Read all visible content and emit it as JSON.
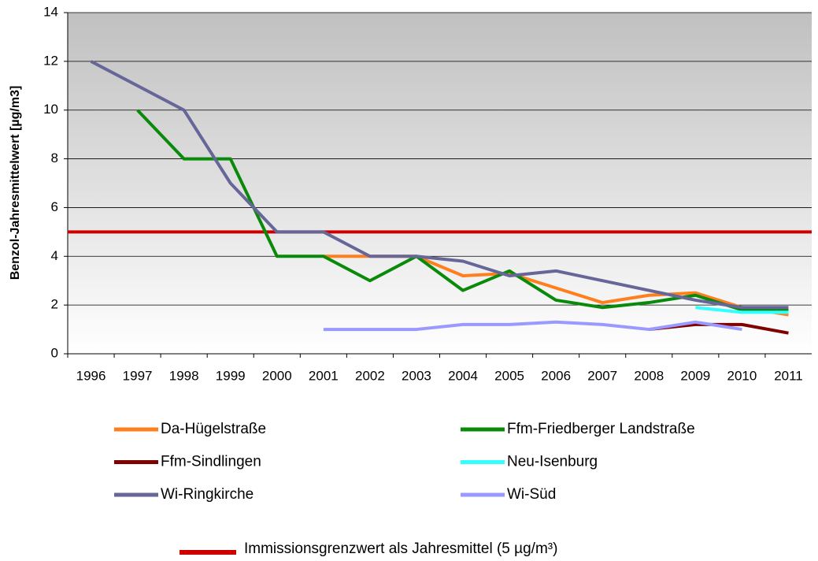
{
  "chart_data": {
    "type": "line",
    "y_label": "Benzol-Jahresmittelwert [µg/m3]",
    "categories": [
      "1996",
      "1997",
      "1998",
      "1999",
      "2000",
      "2001",
      "2002",
      "2003",
      "2004",
      "2005",
      "2006",
      "2007",
      "2008",
      "2009",
      "2010",
      "2011"
    ],
    "ylim": [
      0,
      14
    ],
    "yticks": [
      0,
      2,
      4,
      6,
      8,
      10,
      12,
      14
    ],
    "grid": true,
    "series": [
      {
        "name": "Da-Hügelstraße",
        "color": "#ff7f1f",
        "values": [
          null,
          null,
          null,
          null,
          null,
          4,
          4,
          4,
          3.2,
          3.3,
          2.7,
          2.1,
          2.4,
          2.5,
          1.9,
          1.6
        ]
      },
      {
        "name": "Ffm-Friedberger Landstraße",
        "color": "#0a8a0a",
        "values": [
          null,
          10,
          8,
          8,
          4,
          4,
          3,
          4,
          2.6,
          3.4,
          2.2,
          1.9,
          2.1,
          2.4,
          1.8,
          1.8
        ]
      },
      {
        "name": "Ffm-Sindlingen",
        "color": "#800000",
        "values": [
          null,
          null,
          null,
          null,
          null,
          null,
          null,
          null,
          null,
          null,
          null,
          null,
          1.0,
          1.2,
          1.2,
          0.85
        ]
      },
      {
        "name": "Neu-Isenburg",
        "color": "#33ffff",
        "values": [
          null,
          null,
          null,
          null,
          null,
          null,
          null,
          null,
          null,
          null,
          null,
          null,
          null,
          1.9,
          1.7,
          1.7
        ]
      },
      {
        "name": "Wi-Ringkirche",
        "color": "#666699",
        "values": [
          12,
          11,
          10,
          7,
          5,
          5,
          4,
          4,
          3.8,
          3.2,
          3.4,
          3.0,
          2.6,
          2.2,
          1.9,
          1.9
        ]
      },
      {
        "name": "Wi-Süd",
        "color": "#9999ff",
        "values": [
          null,
          null,
          null,
          null,
          null,
          1.0,
          1.0,
          1.0,
          1.2,
          1.2,
          1.3,
          1.2,
          1.0,
          1.3,
          1.0,
          null
        ]
      }
    ],
    "threshold": {
      "label": "Immissionsgrenzwert als Jahresmittel (5 µg/m³)",
      "value": 5,
      "color": "#cc0000"
    }
  }
}
